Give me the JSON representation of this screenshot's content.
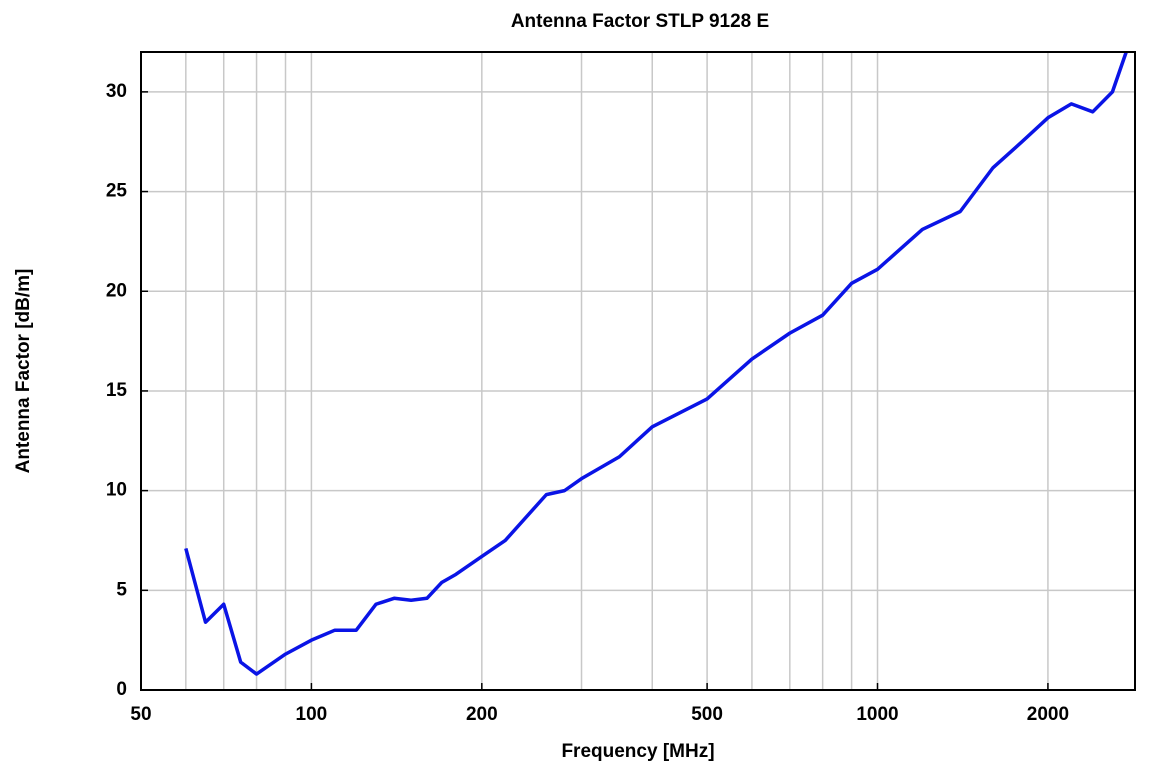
{
  "chart_data": {
    "type": "line",
    "title": "Antenna Factor STLP 9128 E",
    "xlabel": "Frequency [MHz]",
    "ylabel": "Antenna Factor [dB/m]",
    "xscale": "log",
    "grid": true,
    "x": [
      60,
      65,
      70,
      75,
      80,
      90,
      100,
      110,
      120,
      130,
      140,
      150,
      160,
      170,
      180,
      200,
      220,
      260,
      280,
      300,
      350,
      400,
      500,
      600,
      700,
      800,
      900,
      1000,
      1200,
      1400,
      1600,
      1800,
      2000,
      2200,
      2400,
      2600,
      2750
    ],
    "series": [
      {
        "name": "Antenna Factor",
        "color": "#0a14e6",
        "values": [
          7.1,
          3.4,
          4.3,
          1.4,
          0.8,
          1.8,
          2.5,
          3.0,
          3.0,
          4.3,
          4.6,
          4.5,
          4.6,
          5.4,
          5.8,
          6.7,
          7.5,
          9.8,
          10.0,
          10.6,
          11.7,
          13.2,
          14.6,
          16.6,
          17.9,
          18.8,
          20.4,
          21.1,
          23.1,
          24.0,
          26.2,
          27.5,
          28.7,
          29.4,
          29.0,
          30.0,
          32.0
        ]
      }
    ],
    "xlim": [
      50,
      2850
    ],
    "xticks": [
      50,
      100,
      200,
      500,
      1000,
      2000
    ],
    "xminor": [
      60,
      70,
      80,
      90,
      300,
      400,
      600,
      700,
      800,
      900
    ],
    "ylim": [
      0,
      32
    ],
    "yticks": [
      0,
      5,
      10,
      15,
      20,
      25,
      30
    ]
  }
}
